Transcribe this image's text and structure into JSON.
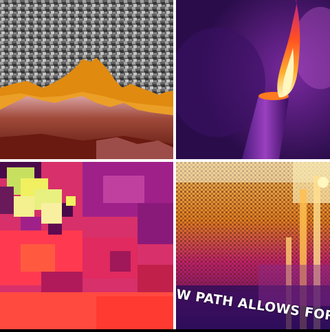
{
  "collage": {
    "tiles": [
      {
        "id": "grayscale-thermal-terrain",
        "palette": [
          "#1a1a1a",
          "#7a7a7a",
          "#e0e0e0",
          "#e08a10",
          "#7a1e10"
        ]
      },
      {
        "id": "purple-thermal-flame",
        "palette": [
          "#2a0c4a",
          "#5a1a8a",
          "#ff7a20",
          "#fff6c0"
        ]
      },
      {
        "id": "magenta-pixelated-thermal",
        "palette": [
          "#d0206a",
          "#ff3a50",
          "#f0f060",
          "#4a0a4a"
        ]
      },
      {
        "id": "ironbow-thermal-surface",
        "palette": [
          "#3a1060",
          "#c02070",
          "#ff9a20",
          "#ffe890"
        ]
      }
    ]
  },
  "caption": {
    "text": "W PATH ALLOWS FOR PLAN C"
  }
}
